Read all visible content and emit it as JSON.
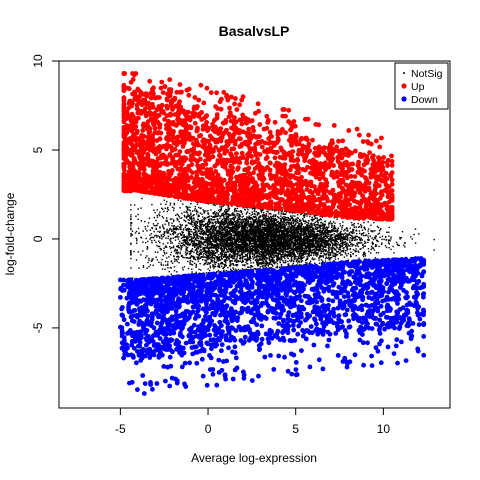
{
  "chart_data": {
    "type": "scatter",
    "title": "BasalvsLP",
    "xlabel": "Average log-expression",
    "ylabel": "log-fold-change",
    "xlim": [
      -8.5,
      13.8
    ],
    "ylim": [
      -9.5,
      10
    ],
    "xticks": [
      -5,
      0,
      5,
      10
    ],
    "yticks": [
      -5,
      0,
      5,
      10
    ],
    "grid": false,
    "legend_position": "top-right",
    "series": [
      {
        "name": "NotSig",
        "color": "#000000",
        "marker": "dot",
        "cloud": {
          "count": 7000,
          "x_range": [
            -4.4,
            12.9
          ],
          "x_center": 3,
          "upper_bound_at_x": [
            [
              -4,
              2.6
            ],
            [
              0,
              2.0
            ],
            [
              4,
              1.6
            ],
            [
              8,
              1.1
            ],
            [
              12,
              0.9
            ]
          ],
          "lower_bound_at_x": [
            [
              -4,
              -2.2
            ],
            [
              0,
              -1.9
            ],
            [
              4,
              -1.6
            ],
            [
              8,
              -1.2
            ],
            [
              12,
              -1.0
            ]
          ]
        }
      },
      {
        "name": "Up",
        "color": "#ff0000",
        "marker": "filled-circle",
        "cloud": {
          "count": 2600,
          "x_range": [
            -4.8,
            10.5
          ],
          "y_range": [
            1.1,
            9.3
          ]
        }
      },
      {
        "name": "Down",
        "color": "#0000ff",
        "marker": "filled-circle",
        "cloud": {
          "count": 2400,
          "x_range": [
            -5.0,
            12.3
          ],
          "y_range": [
            -8.8,
            -1.0
          ]
        }
      }
    ]
  }
}
